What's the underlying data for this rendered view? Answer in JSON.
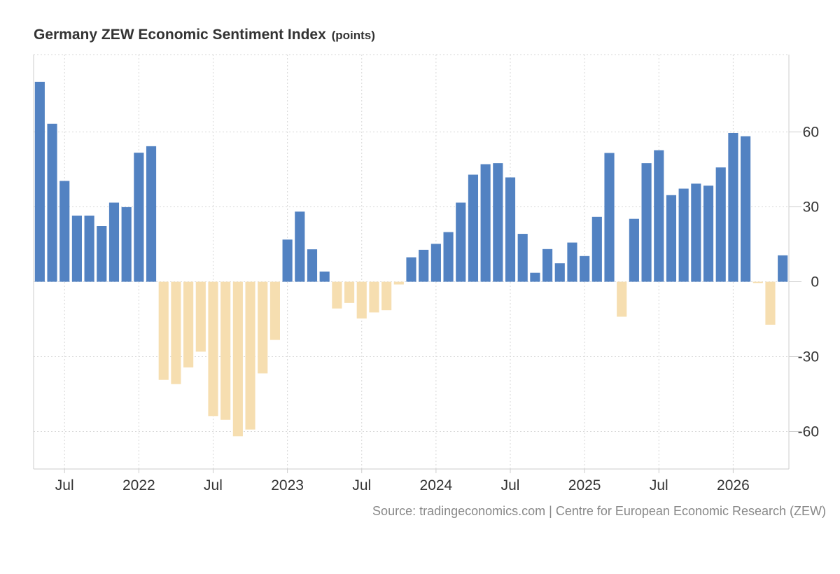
{
  "chart_data": {
    "type": "bar",
    "title": "Germany ZEW Economic Sentiment Index",
    "unit": "(points)",
    "source": "Source: tradingeconomics.com | Centre for European Economic Research (ZEW)",
    "x": [
      "2021-05",
      "2021-06",
      "2021-07",
      "2021-08",
      "2021-09",
      "2021-10",
      "2021-11",
      "2021-12",
      "2022-01",
      "2022-02",
      "2022-03",
      "2022-04",
      "2022-05",
      "2022-06",
      "2022-07",
      "2022-08",
      "2022-09",
      "2022-10",
      "2022-11",
      "2022-12",
      "2023-01",
      "2023-02",
      "2023-03",
      "2023-04",
      "2023-05",
      "2023-06",
      "2023-07",
      "2023-08",
      "2023-09",
      "2023-10",
      "2023-11",
      "2023-12",
      "2024-01",
      "2024-02",
      "2024-03",
      "2024-04",
      "2024-05",
      "2024-06",
      "2024-07",
      "2024-08",
      "2024-09",
      "2024-10",
      "2024-11",
      "2024-12",
      "2025-01",
      "2025-02",
      "2025-03",
      "2025-04",
      "2025-05",
      "2025-06",
      "2025-07",
      "2025-08",
      "2025-09",
      "2025-10",
      "2025-11",
      "2025-12",
      "2026-01",
      "2026-02",
      "2026-03",
      "2026-04",
      "2026-05"
    ],
    "values": [
      80.1,
      63.3,
      40.4,
      26.5,
      26.5,
      22.3,
      31.7,
      29.9,
      51.7,
      54.3,
      -39.3,
      -41.0,
      -34.3,
      -28.0,
      -53.8,
      -55.3,
      -61.9,
      -59.2,
      -36.7,
      -23.3,
      16.9,
      28.1,
      13.0,
      4.1,
      -10.7,
      -8.5,
      -14.7,
      -12.3,
      -11.4,
      -1.1,
      9.8,
      12.8,
      15.2,
      19.9,
      31.7,
      42.9,
      47.1,
      47.5,
      41.8,
      19.2,
      3.6,
      13.1,
      7.4,
      15.7,
      10.3,
      26.0,
      51.6,
      -14.0,
      25.2,
      47.5,
      52.7,
      34.7,
      37.3,
      39.3,
      38.5,
      45.8,
      59.6,
      58.3,
      -0.5,
      -17.2,
      10.6
    ],
    "tick_labels": [
      {
        "text": "Jul",
        "x": "2021-07"
      },
      {
        "text": "2022",
        "x": "2022-01"
      },
      {
        "text": "Jul",
        "x": "2022-07"
      },
      {
        "text": "2023",
        "x": "2023-01"
      },
      {
        "text": "Jul",
        "x": "2023-07"
      },
      {
        "text": "2024",
        "x": "2024-01"
      },
      {
        "text": "Jul",
        "x": "2024-07"
      },
      {
        "text": "2025",
        "x": "2025-01"
      },
      {
        "text": "Jul",
        "x": "2025-07"
      },
      {
        "text": "2026",
        "x": "2026-01"
      }
    ],
    "y_ticks": [
      60,
      30,
      0,
      -30,
      -60
    ],
    "ylim": [
      -75,
      91
    ],
    "positive_color": "#5282c2",
    "negative_color": "#f6deb0",
    "grid": true,
    "y_axis_position": "right"
  }
}
